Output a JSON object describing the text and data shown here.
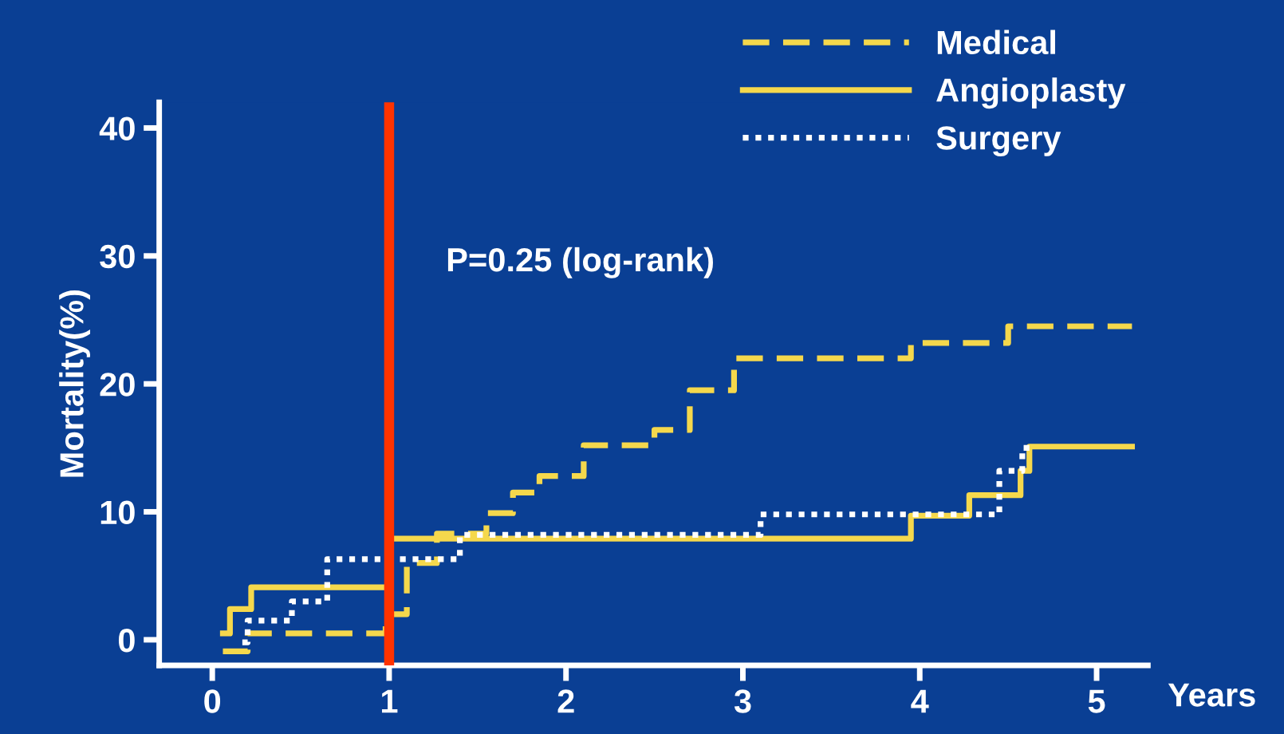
{
  "chart_data": {
    "type": "step",
    "ylabel": "Mortality(%)",
    "xlabel": "Years",
    "xlim": [
      -0.3,
      5.29
    ],
    "ylim": [
      -2,
      42
    ],
    "xticks": [
      0,
      1,
      2,
      3,
      4,
      5
    ],
    "yticks": [
      0,
      10,
      20,
      30,
      40
    ],
    "grid": false,
    "legend": "top right",
    "annotations": [
      "P=0.25 (log-rank)"
    ],
    "ref_lines": [
      {
        "axis": "x",
        "value": 1,
        "color": "#ff3300"
      }
    ],
    "series": [
      {
        "name": "Medical",
        "color": "#f5d84c",
        "line_style": "dashed",
        "x": [
          0.06,
          0.2,
          0.98,
          1.1,
          1.27,
          1.55,
          1.7,
          1.85,
          2.1,
          2.5,
          2.7,
          2.95,
          3.95,
          4.5,
          5.2
        ],
        "values": [
          -0.9,
          0.5,
          2.0,
          6.0,
          8.3,
          9.9,
          11.5,
          12.8,
          15.2,
          16.4,
          19.5,
          22.0,
          23.2,
          24.5,
          24.5
        ]
      },
      {
        "name": "Angioplasty",
        "color": "#f5d84c",
        "line_style": "solid",
        "x": [
          0.06,
          0.1,
          0.22,
          1.0,
          3.95,
          4.28,
          4.57,
          4.62,
          5.2
        ],
        "values": [
          0.5,
          2.4,
          4.1,
          7.9,
          9.7,
          11.3,
          13.2,
          15.1,
          15.1
        ]
      },
      {
        "name": "Surgery",
        "color": "#ffffff",
        "line_style": "dotted",
        "x": [
          0.17,
          0.2,
          0.45,
          0.65,
          1.4,
          3.1,
          4.45,
          4.58,
          4.65
        ],
        "values": [
          -0.2,
          1.5,
          3.0,
          6.3,
          8.2,
          9.8,
          13.2,
          15.0,
          15.0
        ]
      }
    ]
  }
}
